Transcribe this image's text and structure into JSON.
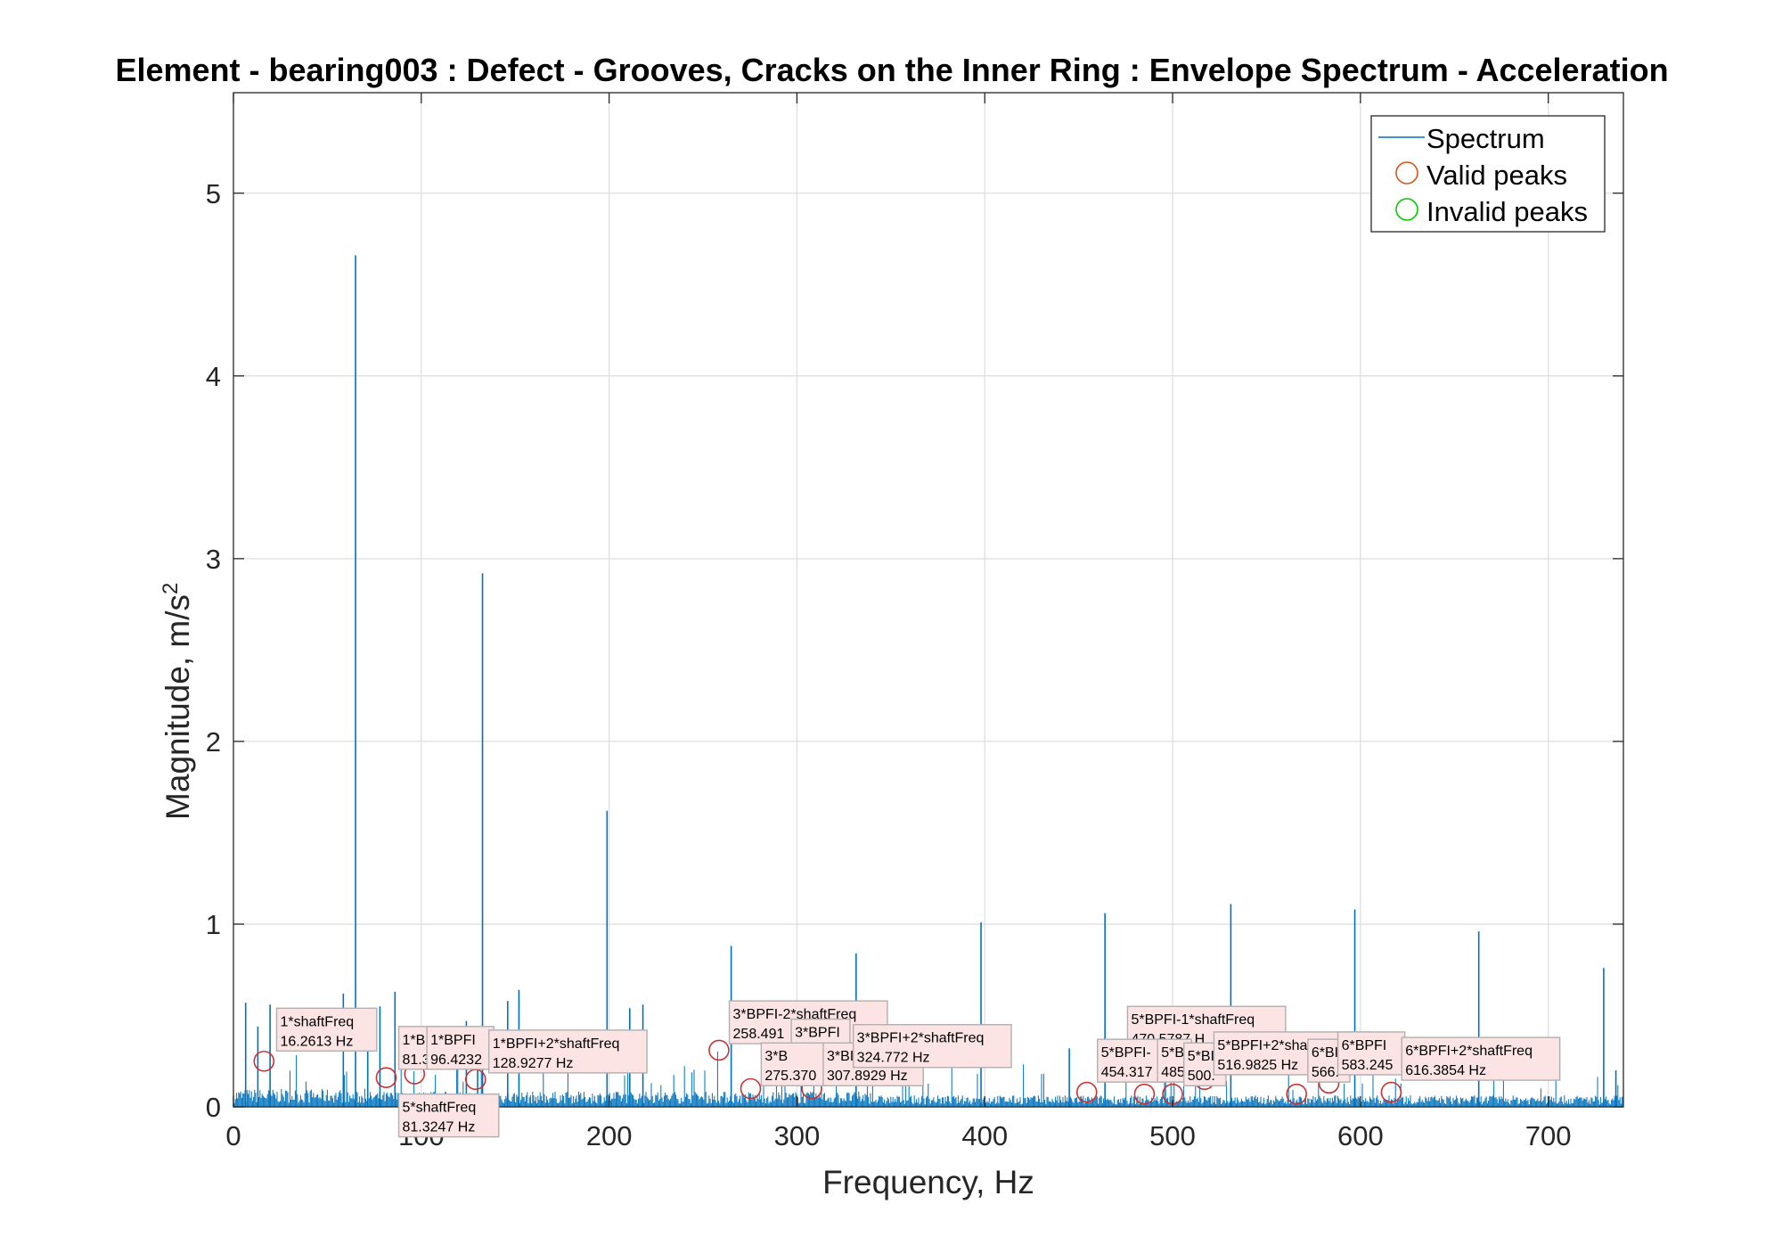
{
  "chart_data": {
    "type": "line",
    "title": "Element - bearing003 : Defect - Grooves, Cracks on the Inner Ring : Envelope Spectrum - Acceleration",
    "xlabel": "Frequency, Hz",
    "ylabel": "Magnitude, m/s",
    "ylabel_superscript": "2",
    "xlim": [
      0,
      740
    ],
    "ylim": [
      0,
      5.55
    ],
    "xticks": [
      0,
      100,
      200,
      300,
      400,
      500,
      600,
      700
    ],
    "yticks": [
      0,
      1,
      2,
      3,
      4,
      5
    ],
    "xtick_labels": [
      "0",
      "100",
      "200",
      "300",
      "400",
      "500",
      "600",
      "700"
    ],
    "ytick_labels": [
      "0",
      "1",
      "2",
      "3",
      "4",
      "5"
    ],
    "grid": true,
    "legend_position": "top-right",
    "legend": [
      {
        "label": "Spectrum",
        "marker": "line",
        "color": "#0072BD"
      },
      {
        "label": "Valid peaks",
        "marker": "circle",
        "color": "#D95319"
      },
      {
        "label": "Invalid peaks",
        "marker": "circle",
        "color": "#00CC00"
      }
    ],
    "colors": {
      "spectrum": "#0072BD",
      "valid_peak": "#C83232",
      "datatip_fill": "#FCE4E4",
      "datatip_border": "#B0B0B0"
    },
    "spectrum_peaks": [
      {
        "x": 6.5,
        "y": 0.57
      },
      {
        "x": 13.0,
        "y": 0.44
      },
      {
        "x": 19.5,
        "y": 0.56
      },
      {
        "x": 58.5,
        "y": 0.62
      },
      {
        "x": 65.0,
        "y": 4.66
      },
      {
        "x": 71.5,
        "y": 0.36
      },
      {
        "x": 78.0,
        "y": 0.55
      },
      {
        "x": 86.0,
        "y": 0.63
      },
      {
        "x": 124.0,
        "y": 0.47
      },
      {
        "x": 130.0,
        "y": 0.38
      },
      {
        "x": 132.6,
        "y": 2.92
      },
      {
        "x": 146.0,
        "y": 0.58
      },
      {
        "x": 152.0,
        "y": 0.64
      },
      {
        "x": 198.9,
        "y": 1.62
      },
      {
        "x": 211.0,
        "y": 0.54
      },
      {
        "x": 218.0,
        "y": 0.56
      },
      {
        "x": 265.0,
        "y": 0.88
      },
      {
        "x": 331.5,
        "y": 0.84
      },
      {
        "x": 398.0,
        "y": 1.01
      },
      {
        "x": 445.0,
        "y": 0.32
      },
      {
        "x": 464.0,
        "y": 1.06
      },
      {
        "x": 531.0,
        "y": 1.11
      },
      {
        "x": 597.0,
        "y": 1.08
      },
      {
        "x": 663.0,
        "y": 0.96
      },
      {
        "x": 729.5,
        "y": 0.76
      },
      {
        "x": 736.0,
        "y": 0.2
      }
    ],
    "valid_peaks": [
      {
        "x": 16.2613,
        "y": 0.25
      },
      {
        "x": 81.3247,
        "y": 0.16
      },
      {
        "x": 96.4232,
        "y": 0.18
      },
      {
        "x": 128.9277,
        "y": 0.15
      },
      {
        "x": 258.491,
        "y": 0.31
      },
      {
        "x": 275.37,
        "y": 0.1
      },
      {
        "x": 307.8929,
        "y": 0.1
      },
      {
        "x": 324.772,
        "y": 0.2
      },
      {
        "x": 454.317,
        "y": 0.08
      },
      {
        "x": 485.0,
        "y": 0.07
      },
      {
        "x": 500.0,
        "y": 0.07
      },
      {
        "x": 516.9825,
        "y": 0.15
      },
      {
        "x": 566.0,
        "y": 0.07
      },
      {
        "x": 583.245,
        "y": 0.13
      },
      {
        "x": 616.3854,
        "y": 0.08
      }
    ],
    "annotations": [
      {
        "label": "1*shaftFreq",
        "value": "16.2613 Hz",
        "x": 23,
        "y": 0.54
      },
      {
        "label": "1*B",
        "value": "81.3",
        "x": 88,
        "y": 0.44
      },
      {
        "label": "1*BPFI",
        "value": "96.4232",
        "x": 103,
        "y": 0.44
      },
      {
        "label": "1*BPFI+2*shaftFreq",
        "value": "128.9277 Hz",
        "x": 136,
        "y": 0.42
      },
      {
        "label": "5*shaftFreq",
        "value": "81.3247 Hz",
        "x": 88,
        "y": 0.07
      },
      {
        "label": "3*BPFI-2*shaftFreq",
        "value": "258.491",
        "x": 264,
        "y": 0.58
      },
      {
        "label": "3*BPFI",
        "value": "291",
        "x": 297,
        "y": 0.48
      },
      {
        "label": "3*B",
        "value": "275.370",
        "x": 281,
        "y": 0.35
      },
      {
        "label": "3*BI",
        "value": "307.8929 Hz",
        "x": 314,
        "y": 0.35
      },
      {
        "label": "3*BPFI+2*shaftFreq",
        "value": "324.772 Hz",
        "x": 330,
        "y": 0.45
      },
      {
        "label": "5*BPFI-1*shaftFreq",
        "value": "470.5787 H",
        "x": 476,
        "y": 0.55
      },
      {
        "label": "5*BPFI-",
        "value": "454.317",
        "x": 460,
        "y": 0.37
      },
      {
        "label": "5*B",
        "value": "485",
        "x": 492,
        "y": 0.37
      },
      {
        "label": "5*BI",
        "value": "500.",
        "x": 506,
        "y": 0.35
      },
      {
        "label": "5*BPFI+2*shaftFreq",
        "value": "516.9825 Hz",
        "x": 522,
        "y": 0.41
      },
      {
        "label": "6*BI",
        "value": "566.",
        "x": 572,
        "y": 0.37
      },
      {
        "label": "6*BPFI",
        "value": "583.245",
        "x": 588,
        "y": 0.41
      },
      {
        "label": "6*BPFI+2*shaftFreq",
        "value": "616.3854 Hz",
        "x": 622,
        "y": 0.38
      }
    ]
  }
}
